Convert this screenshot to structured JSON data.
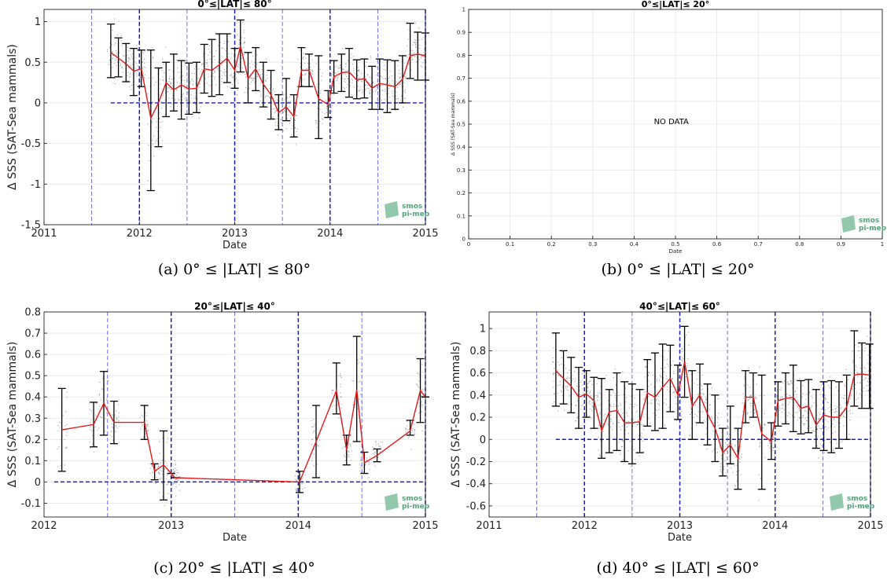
{
  "chart_data": [
    {
      "id": "a",
      "type": "line",
      "title": "0°≤|LAT|≤ 80°",
      "xlabel": "Date",
      "ylabel": "Δ SSS (SAT-Sea mammals)",
      "xlim": [
        2011,
        2015
      ],
      "ylim": [
        -1.5,
        1.15
      ],
      "xticks": [
        "2011",
        "2012",
        "2013",
        "2014",
        "2015"
      ],
      "yticks": [
        "-1.5",
        "-1",
        "-0.5",
        "0",
        "0.5",
        "1"
      ],
      "logo": [
        "smos",
        "pi-mep"
      ],
      "caption": "(a) 0° ≤ |LAT| ≤ 80°",
      "series": [
        {
          "points": [
            [
              2011.7,
              0.62,
              0.31,
              0.97
            ],
            [
              2011.78,
              0.55,
              0.32,
              0.8
            ],
            [
              2011.86,
              0.48,
              0.26,
              0.73
            ],
            [
              2011.94,
              0.39,
              0.09,
              0.67
            ],
            [
              2012.02,
              0.42,
              0.2,
              0.65
            ],
            [
              2012.12,
              -0.19,
              -1.08,
              0.65
            ],
            [
              2012.2,
              0.0,
              -0.54,
              0.43
            ],
            [
              2012.28,
              0.25,
              -0.17,
              0.5
            ],
            [
              2012.36,
              0.16,
              -0.1,
              0.6
            ],
            [
              2012.44,
              0.22,
              -0.2,
              0.52
            ],
            [
              2012.52,
              0.17,
              -0.14,
              0.49
            ],
            [
              2012.6,
              0.18,
              -0.12,
              0.5
            ],
            [
              2012.68,
              0.42,
              0.12,
              0.72
            ],
            [
              2012.76,
              0.4,
              0.08,
              0.78
            ],
            [
              2012.84,
              0.47,
              0.1,
              0.85
            ],
            [
              2012.92,
              0.55,
              0.25,
              0.85
            ],
            [
              2013.0,
              0.4,
              0.18,
              0.67
            ],
            [
              2013.06,
              0.7,
              0.38,
              1.02
            ],
            [
              2013.14,
              0.3,
              0.0,
              0.62
            ],
            [
              2013.22,
              0.42,
              0.15,
              0.68
            ],
            [
              2013.3,
              0.23,
              -0.05,
              0.5
            ],
            [
              2013.38,
              0.1,
              -0.2,
              0.4
            ],
            [
              2013.46,
              -0.12,
              -0.33,
              0.1
            ],
            [
              2013.54,
              -0.05,
              -0.22,
              0.3
            ],
            [
              2013.62,
              -0.17,
              -0.42,
              0.1
            ],
            [
              2013.7,
              0.4,
              0.2,
              0.68
            ],
            [
              2013.78,
              0.4,
              0.2,
              0.6
            ],
            [
              2013.88,
              0.05,
              -0.44,
              0.58
            ],
            [
              2013.98,
              -0.02,
              -0.18,
              0.15
            ],
            [
              2014.04,
              0.32,
              0.12,
              0.52
            ],
            [
              2014.12,
              0.37,
              0.14,
              0.6
            ],
            [
              2014.2,
              0.38,
              0.07,
              0.67
            ],
            [
              2014.28,
              0.28,
              0.05,
              0.53
            ],
            [
              2014.36,
              0.3,
              0.06,
              0.54
            ],
            [
              2014.44,
              0.18,
              -0.08,
              0.45
            ],
            [
              2014.52,
              0.24,
              -0.08,
              0.54
            ],
            [
              2014.6,
              0.22,
              -0.12,
              0.53
            ],
            [
              2014.68,
              0.2,
              -0.08,
              0.52
            ],
            [
              2014.76,
              0.29,
              0.0,
              0.58
            ],
            [
              2014.84,
              0.58,
              0.3,
              0.98
            ],
            [
              2014.92,
              0.6,
              0.28,
              0.87
            ],
            [
              2015.0,
              0.58,
              0.28,
              0.86
            ]
          ]
        }
      ],
      "vlines_major": [
        2012,
        2013,
        2014,
        2015
      ],
      "vlines_minor": [
        2011.5,
        2012.5,
        2013.5,
        2014.5
      ],
      "hline": 0,
      "hline_from": 2011.7
    },
    {
      "id": "b",
      "type": "line",
      "title": "0°≤|LAT|≤ 20°",
      "xlabel": "Date",
      "ylabel": "Δ SSS (SAT-Sea mammals)",
      "xlim": [
        0,
        1
      ],
      "ylim": [
        0,
        1
      ],
      "xticks": [
        "0",
        "0.1",
        "0.2",
        "0.3",
        "0.4",
        "0.5",
        "0.6",
        "0.7",
        "0.8",
        "0.9",
        "1"
      ],
      "yticks": [
        "0",
        "0.1",
        "0.2",
        "0.3",
        "0.4",
        "0.5",
        "0.6",
        "0.7",
        "0.8",
        "0.9",
        "1"
      ],
      "annotation": "NO DATA",
      "logo": [
        "smos",
        "pi-mep"
      ],
      "caption": "(b) 0° ≤ |LAT| ≤ 20°",
      "series": []
    },
    {
      "id": "c",
      "type": "line",
      "title": "20°≤|LAT|≤ 40°",
      "xlabel": "Date",
      "ylabel": "Δ SSS (SAT-Sea mammals)",
      "xlim": [
        2012,
        2015
      ],
      "ylim": [
        -0.165,
        0.8
      ],
      "xticks": [
        "2012",
        "2013",
        "2014",
        "2015"
      ],
      "yticks": [
        "-0.1",
        "0",
        "0.1",
        "0.2",
        "0.3",
        "0.4",
        "0.5",
        "0.6",
        "0.7",
        "0.8"
      ],
      "logo": [
        "smos",
        "pi-mep"
      ],
      "caption": "(c) 20° ≤ |LAT| ≤ 40°",
      "series": [
        {
          "points": [
            [
              2012.14,
              0.245,
              0.05,
              0.44
            ],
            [
              2012.39,
              0.27,
              0.165,
              0.375
            ],
            [
              2012.47,
              0.37,
              0.22,
              0.52
            ],
            [
              2012.55,
              0.28,
              0.18,
              0.38
            ],
            [
              2012.79,
              0.28,
              0.2,
              0.36
            ],
            [
              2012.87,
              0.05,
              0.01,
              0.085
            ],
            [
              2012.94,
              0.08,
              -0.085,
              0.24
            ],
            [
              2013.0,
              0.04,
              0.04,
              0.04
            ],
            [
              2013.03,
              0.02,
              0.02,
              0.02
            ],
            [
              2014.01,
              0.0,
              -0.05,
              0.05
            ],
            [
              2014.14,
              0.19,
              0.02,
              0.36
            ],
            [
              2014.3,
              0.43,
              0.32,
              0.56
            ],
            [
              2014.38,
              0.15,
              0.08,
              0.22
            ],
            [
              2014.46,
              0.435,
              0.19,
              0.685
            ],
            [
              2014.52,
              0.09,
              0.04,
              0.14
            ],
            [
              2014.62,
              0.125,
              0.095,
              0.155
            ],
            [
              2014.88,
              0.24,
              0.22,
              0.29
            ],
            [
              2014.96,
              0.43,
              0.28,
              0.58
            ],
            [
              2015.0,
              0.4,
              0.4,
              0.4
            ]
          ]
        }
      ],
      "vlines_major": [
        2013,
        2014,
        2015
      ],
      "vlines_minor": [
        2012.5,
        2013.5,
        2014.5
      ],
      "hline": 0,
      "hline_from": 2012.08
    },
    {
      "id": "d",
      "type": "line",
      "title": "40°≤|LAT|≤ 60°",
      "xlabel": "Date",
      "ylabel": "Δ SSS (SAT-Sea mammals)",
      "xlim": [
        2011,
        2015
      ],
      "ylim": [
        -0.7,
        1.15
      ],
      "xticks": [
        "2011",
        "2012",
        "2013",
        "2014",
        "2015"
      ],
      "yticks": [
        "-0.6",
        "-0.4",
        "-0.2",
        "0",
        "0.2",
        "0.4",
        "0.6",
        "0.8",
        "1"
      ],
      "logo": [
        "smos",
        "pi-mep"
      ],
      "caption": "(d) 40° ≤ |LAT| ≤ 60°",
      "series": [
        {
          "points": [
            [
              2011.7,
              0.62,
              0.3,
              0.96
            ],
            [
              2011.78,
              0.55,
              0.32,
              0.8
            ],
            [
              2011.86,
              0.48,
              0.24,
              0.74
            ],
            [
              2011.94,
              0.38,
              0.1,
              0.65
            ],
            [
              2012.02,
              0.41,
              0.2,
              0.62
            ],
            [
              2012.1,
              0.35,
              0.1,
              0.56
            ],
            [
              2012.18,
              0.08,
              -0.17,
              0.55
            ],
            [
              2012.26,
              0.25,
              -0.12,
              0.45
            ],
            [
              2012.34,
              0.26,
              -0.1,
              0.6
            ],
            [
              2012.42,
              0.15,
              -0.2,
              0.52
            ],
            [
              2012.5,
              0.15,
              -0.22,
              0.5
            ],
            [
              2012.58,
              0.16,
              -0.12,
              0.45
            ],
            [
              2012.66,
              0.42,
              0.12,
              0.72
            ],
            [
              2012.74,
              0.38,
              0.08,
              0.78
            ],
            [
              2012.82,
              0.47,
              0.1,
              0.86
            ],
            [
              2012.9,
              0.55,
              0.25,
              0.85
            ],
            [
              2012.98,
              0.4,
              0.18,
              0.67
            ],
            [
              2013.05,
              0.7,
              0.38,
              1.02
            ],
            [
              2013.13,
              0.3,
              0.0,
              0.62
            ],
            [
              2013.21,
              0.4,
              0.15,
              0.68
            ],
            [
              2013.29,
              0.23,
              -0.05,
              0.5
            ],
            [
              2013.37,
              0.1,
              -0.2,
              0.4
            ],
            [
              2013.45,
              -0.12,
              -0.33,
              0.1
            ],
            [
              2013.53,
              -0.05,
              -0.22,
              0.3
            ],
            [
              2013.61,
              -0.17,
              -0.45,
              0.1
            ],
            [
              2013.69,
              0.38,
              0.15,
              0.62
            ],
            [
              2013.77,
              0.38,
              0.2,
              0.6
            ],
            [
              2013.86,
              0.05,
              -0.45,
              0.58
            ],
            [
              2013.96,
              -0.02,
              -0.18,
              0.15
            ],
            [
              2014.03,
              0.35,
              0.12,
              0.52
            ],
            [
              2014.11,
              0.37,
              0.14,
              0.6
            ],
            [
              2014.19,
              0.38,
              0.07,
              0.67
            ],
            [
              2014.27,
              0.28,
              0.05,
              0.53
            ],
            [
              2014.35,
              0.3,
              0.06,
              0.54
            ],
            [
              2014.43,
              0.13,
              -0.08,
              0.45
            ],
            [
              2014.51,
              0.22,
              -0.1,
              0.52
            ],
            [
              2014.59,
              0.2,
              -0.12,
              0.53
            ],
            [
              2014.67,
              0.2,
              -0.08,
              0.52
            ],
            [
              2014.75,
              0.29,
              0.0,
              0.58
            ],
            [
              2014.83,
              0.58,
              0.3,
              0.98
            ],
            [
              2014.91,
              0.59,
              0.28,
              0.87
            ],
            [
              2014.99,
              0.58,
              0.28,
              0.86
            ]
          ]
        }
      ],
      "vlines_major": [
        2012,
        2013,
        2014,
        2015
      ],
      "vlines_minor": [
        2011.5,
        2012.5,
        2013.5,
        2014.5
      ],
      "hline": 0,
      "hline_from": 2011.7
    }
  ]
}
